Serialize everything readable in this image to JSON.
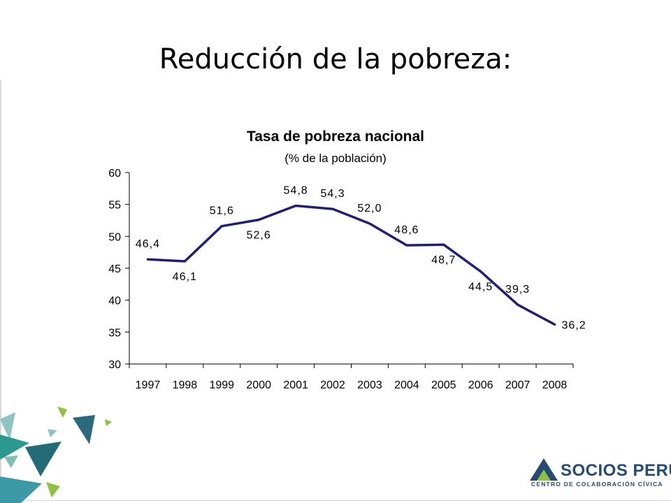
{
  "slide": {
    "title": "Reducción de la pobreza:"
  },
  "logo": {
    "name": "SOCIOS PERÚ",
    "subtitle": "CENTRO DE COLABORACIÓN CÍVICA"
  },
  "colors": {
    "series": "#1f1f7a",
    "logo": "#254a73",
    "logo_accent": "#8ec13f"
  },
  "chart_data": {
    "type": "line",
    "title": "Tasa de pobreza nacional",
    "subtitle": "(% de la población)",
    "xlabel": "",
    "ylabel": "",
    "categories": [
      "1997",
      "1998",
      "1999",
      "2000",
      "2001",
      "2002",
      "2003",
      "2004",
      "2005",
      "2006",
      "2007",
      "2008"
    ],
    "series": [
      {
        "values": [
          46.4,
          46.1,
          51.6,
          52.6,
          54.8,
          54.3,
          52.0,
          48.6,
          48.7,
          44.5,
          39.3,
          36.2
        ],
        "labels": [
          "46,4",
          "46,1",
          "51,6",
          "52,6",
          "54,8",
          "54,3",
          "52,0",
          "48,6",
          "48,7",
          "44,5",
          "39,3",
          "36,2"
        ]
      }
    ],
    "ylim": [
      30,
      60
    ],
    "yticks": [
      30,
      35,
      40,
      45,
      50,
      55,
      60
    ],
    "grid": false,
    "legend": "none"
  }
}
